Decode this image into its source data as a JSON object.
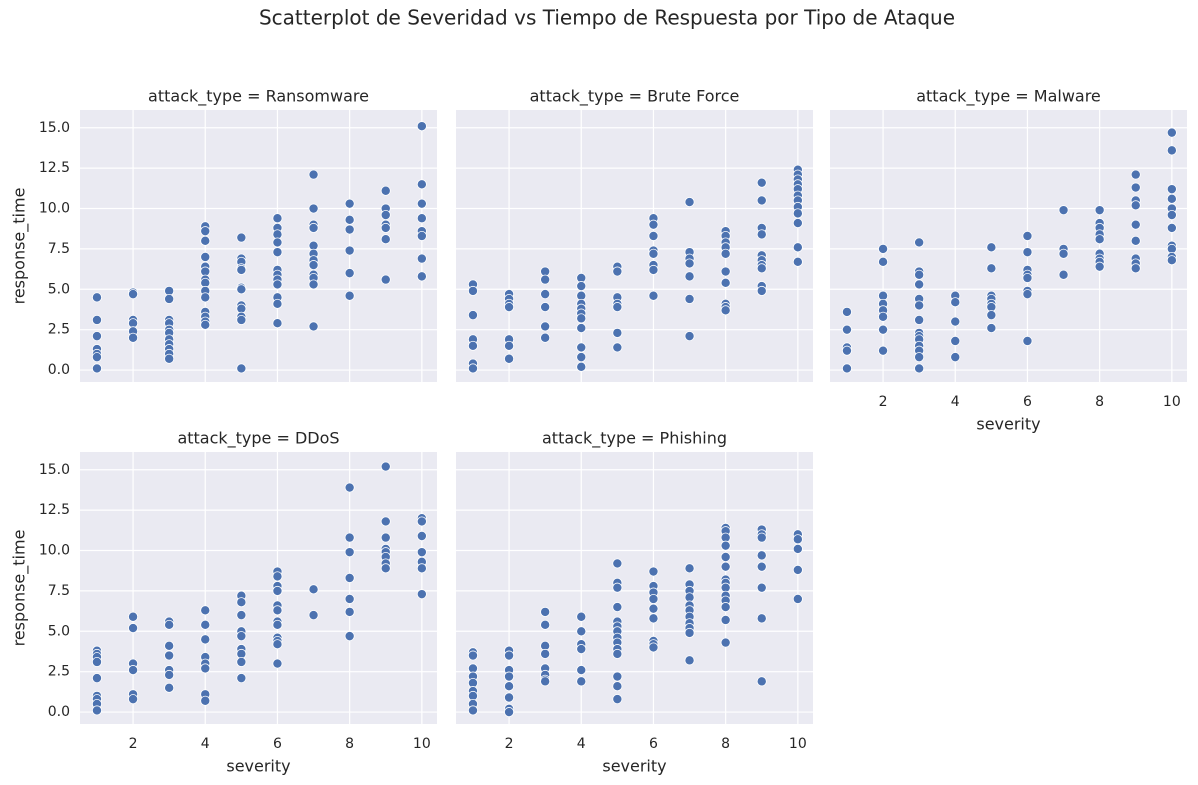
{
  "title": "Scatterplot de Severidad vs Tiempo de Respuesta por Tipo de Ataque",
  "chart_data": [
    {
      "type": "scatter",
      "title": "attack_type = Ransomware",
      "ylabel": "response_time",
      "color": "#4c72b0",
      "grid": true,
      "show_xticklabels": false,
      "show_yticklabels": true,
      "xlim": [
        0.53,
        10.42
      ],
      "ylim": [
        -0.74,
        16.1
      ],
      "xticks": [
        2,
        4,
        6,
        8,
        10
      ],
      "yticks": [
        {
          "value": 0,
          "label": "0.0"
        },
        2.5,
        {
          "value": 5,
          "label": "5.0"
        },
        7.5,
        {
          "value": 10,
          "label": "10.0"
        },
        12.5,
        {
          "value": 15,
          "label": "15.0"
        }
      ],
      "x": [
        1,
        1,
        1,
        1,
        1,
        1,
        1,
        2,
        2,
        2,
        2,
        2,
        2,
        3,
        3,
        3,
        3,
        3,
        3,
        3,
        3,
        3,
        3,
        3,
        4,
        4,
        4,
        4,
        4,
        4,
        4,
        4,
        4,
        4,
        4,
        4,
        4,
        4,
        5,
        5,
        5,
        5,
        5,
        5,
        5,
        5,
        5,
        5,
        5,
        5,
        6,
        6,
        6,
        6,
        6,
        6,
        6,
        6,
        6,
        6,
        6,
        6,
        7,
        7,
        7,
        7,
        7,
        7,
        7,
        7,
        7,
        7,
        7,
        7,
        8,
        8,
        8,
        8,
        8,
        8,
        9,
        9,
        9,
        9,
        9,
        9,
        9,
        10,
        10,
        10,
        10,
        10,
        10,
        10,
        10
      ],
      "y": [
        4.5,
        3.1,
        2.1,
        1.3,
        1.0,
        0.8,
        0.1,
        4.8,
        4.7,
        3.1,
        2.9,
        2.4,
        2.0,
        4.9,
        4.4,
        3.1,
        2.9,
        2.5,
        2.3,
        1.9,
        1.6,
        1.3,
        1.0,
        0.7,
        8.9,
        8.6,
        8.0,
        7.0,
        6.4,
        6.1,
        5.6,
        5.4,
        4.9,
        4.5,
        3.6,
        3.3,
        3.0,
        2.8,
        8.2,
        6.9,
        6.7,
        6.3,
        6.2,
        5.1,
        5.0,
        4.0,
        3.8,
        3.3,
        3.1,
        0.1,
        9.4,
        8.8,
        8.4,
        7.9,
        7.3,
        6.2,
        5.9,
        5.6,
        5.3,
        4.5,
        4.1,
        2.9,
        12.1,
        10.0,
        9.0,
        8.8,
        7.7,
        7.2,
        6.8,
        6.5,
        5.9,
        5.7,
        5.3,
        2.7,
        10.3,
        9.3,
        8.7,
        7.4,
        6.0,
        4.6,
        11.1,
        10.0,
        9.6,
        9.0,
        8.8,
        8.1,
        5.6,
        15.1,
        11.5,
        10.3,
        9.4,
        8.6,
        8.3,
        6.9,
        5.8
      ]
    },
    {
      "type": "scatter",
      "title": "attack_type = Brute Force",
      "color": "#4c72b0",
      "grid": true,
      "show_xticklabels": false,
      "show_yticklabels": false,
      "xlim": [
        0.53,
        10.42
      ],
      "ylim": [
        -0.74,
        16.1
      ],
      "xticks": [
        2,
        4,
        6,
        8,
        10
      ],
      "yticks": [
        {
          "value": 0,
          "label": "0.0"
        },
        2.5,
        {
          "value": 5,
          "label": "5.0"
        },
        7.5,
        {
          "value": 10,
          "label": "10.0"
        },
        12.5,
        {
          "value": 15,
          "label": "15.0"
        }
      ],
      "x": [
        1,
        1,
        1,
        1,
        1,
        1,
        1,
        2,
        2,
        2,
        2,
        2,
        2,
        2,
        3,
        3,
        3,
        3,
        3,
        3,
        4,
        4,
        4,
        4,
        4,
        4,
        4,
        4,
        4,
        4,
        4,
        5,
        5,
        5,
        5,
        5,
        5,
        5,
        6,
        6,
        6,
        6,
        6,
        6,
        6,
        6,
        7,
        7,
        7,
        7,
        7,
        7,
        7,
        8,
        8,
        8,
        8,
        8,
        8,
        8,
        8,
        8,
        8,
        9,
        9,
        9,
        9,
        9,
        9,
        9,
        9,
        9,
        9,
        10,
        10,
        10,
        10,
        10,
        10,
        10,
        10,
        10,
        10,
        10,
        10
      ],
      "y": [
        5.3,
        4.9,
        3.4,
        1.9,
        1.5,
        0.4,
        0.1,
        4.7,
        4.4,
        4.1,
        3.9,
        1.9,
        1.5,
        0.7,
        6.1,
        5.6,
        4.7,
        3.9,
        2.7,
        2.0,
        5.7,
        5.2,
        4.6,
        4.1,
        3.8,
        3.5,
        3.2,
        2.6,
        1.4,
        0.8,
        0.2,
        6.4,
        6.1,
        4.5,
        4.1,
        3.9,
        2.3,
        1.4,
        9.4,
        9.0,
        8.3,
        7.4,
        7.2,
        6.5,
        6.2,
        4.6,
        10.4,
        7.3,
        6.9,
        6.6,
        5.8,
        4.4,
        2.1,
        8.6,
        8.3,
        7.9,
        7.6,
        7.2,
        6.1,
        5.4,
        4.1,
        3.9,
        3.7,
        11.6,
        10.5,
        8.8,
        8.4,
        7.1,
        6.8,
        6.5,
        6.3,
        5.2,
        4.9,
        12.4,
        12.1,
        11.8,
        11.5,
        11.2,
        10.8,
        10.5,
        10.1,
        9.7,
        9.1,
        7.6,
        6.7
      ]
    },
    {
      "type": "scatter",
      "title": "attack_type = Malware",
      "xlabel": "severity",
      "color": "#4c72b0",
      "grid": true,
      "show_xticklabels": true,
      "show_yticklabels": false,
      "xlim": [
        0.53,
        10.42
      ],
      "ylim": [
        -0.74,
        16.1
      ],
      "xticks": [
        2,
        4,
        6,
        8,
        10
      ],
      "yticks": [
        {
          "value": 0,
          "label": "0.0"
        },
        2.5,
        {
          "value": 5,
          "label": "5.0"
        },
        7.5,
        {
          "value": 10,
          "label": "10.0"
        },
        12.5,
        {
          "value": 15,
          "label": "15.0"
        }
      ],
      "x": [
        1,
        1,
        1,
        1,
        1,
        2,
        2,
        2,
        2,
        2,
        2,
        2,
        2,
        3,
        3,
        3,
        3,
        3,
        3,
        3,
        3,
        3,
        3,
        3,
        3,
        3,
        3,
        4,
        4,
        4,
        4,
        4,
        5,
        5,
        5,
        5,
        5,
        5,
        5,
        5,
        6,
        6,
        6,
        6,
        6,
        6,
        6,
        6,
        7,
        7,
        7,
        7,
        8,
        8,
        8,
        8,
        8,
        8,
        8,
        8,
        8,
        9,
        9,
        9,
        9,
        9,
        9,
        9,
        9,
        9,
        10,
        10,
        10,
        10,
        10,
        10,
        10,
        10,
        10,
        10,
        10
      ],
      "y": [
        3.6,
        2.5,
        1.4,
        1.2,
        0.1,
        7.5,
        6.7,
        4.6,
        4.1,
        3.7,
        3.3,
        2.5,
        1.2,
        7.9,
        6.1,
        5.9,
        5.3,
        4.4,
        4.0,
        3.1,
        2.3,
        2.1,
        1.9,
        1.5,
        1.2,
        0.8,
        0.1,
        4.6,
        4.2,
        3.0,
        1.8,
        0.8,
        7.6,
        6.3,
        4.6,
        4.4,
        4.1,
        3.9,
        3.4,
        2.6,
        8.3,
        7.3,
        6.2,
        5.9,
        5.7,
        4.9,
        4.7,
        1.8,
        9.9,
        7.5,
        7.2,
        5.9,
        9.9,
        9.1,
        8.8,
        8.4,
        8.1,
        7.2,
        6.9,
        6.7,
        6.4,
        12.1,
        11.3,
        10.5,
        10.2,
        9.0,
        8.0,
        6.9,
        6.6,
        6.3,
        14.7,
        13.6,
        11.2,
        10.6,
        10.0,
        9.6,
        8.8,
        7.7,
        7.5,
        7.0,
        6.8
      ]
    },
    {
      "type": "scatter",
      "title": "attack_type = DDoS",
      "xlabel": "severity",
      "ylabel": "response_time",
      "color": "#4c72b0",
      "grid": true,
      "show_xticklabels": true,
      "show_yticklabels": true,
      "xlim": [
        0.53,
        10.42
      ],
      "ylim": [
        -0.74,
        16.1
      ],
      "xticks": [
        2,
        4,
        6,
        8,
        10
      ],
      "yticks": [
        {
          "value": 0,
          "label": "0.0"
        },
        2.5,
        {
          "value": 5,
          "label": "5.0"
        },
        7.5,
        {
          "value": 10,
          "label": "10.0"
        },
        12.5,
        {
          "value": 15,
          "label": "15.0"
        }
      ],
      "x": [
        1,
        1,
        1,
        1,
        1,
        1,
        1,
        1,
        1,
        2,
        2,
        2,
        2,
        2,
        2,
        3,
        3,
        3,
        3,
        3,
        3,
        3,
        4,
        4,
        4,
        4,
        4,
        4,
        4,
        4,
        5,
        5,
        5,
        5,
        5,
        5,
        5,
        5,
        5,
        6,
        6,
        6,
        6,
        6,
        6,
        6,
        6,
        6,
        6,
        6,
        6,
        7,
        7,
        8,
        8,
        8,
        8,
        8,
        8,
        8,
        9,
        9,
        9,
        9,
        9,
        9,
        9,
        9,
        10,
        10,
        10,
        10,
        10,
        10,
        10
      ],
      "y": [
        3.8,
        3.6,
        3.4,
        3.1,
        2.1,
        1.0,
        0.8,
        0.5,
        0.1,
        5.9,
        5.2,
        3.0,
        2.6,
        1.1,
        0.8,
        5.6,
        5.4,
        4.1,
        3.5,
        2.6,
        2.3,
        1.5,
        6.3,
        5.4,
        4.5,
        3.4,
        3.0,
        2.7,
        1.1,
        0.7,
        7.2,
        6.8,
        6.0,
        5.0,
        4.7,
        3.9,
        3.6,
        3.1,
        2.1,
        8.7,
        8.4,
        7.8,
        7.5,
        6.6,
        6.3,
        5.6,
        5.4,
        4.6,
        4.4,
        4.2,
        3.0,
        7.6,
        6.0,
        13.9,
        10.8,
        9.9,
        8.3,
        7.0,
        6.2,
        4.7,
        15.2,
        11.8,
        10.8,
        10.1,
        9.9,
        9.6,
        9.2,
        8.9,
        12.0,
        11.8,
        10.9,
        9.9,
        9.3,
        8.9,
        7.3
      ]
    },
    {
      "type": "scatter",
      "title": "attack_type = Phishing",
      "xlabel": "severity",
      "color": "#4c72b0",
      "grid": true,
      "show_xticklabels": true,
      "show_yticklabels": false,
      "xlim": [
        0.53,
        10.42
      ],
      "ylim": [
        -0.74,
        16.1
      ],
      "xticks": [
        2,
        4,
        6,
        8,
        10
      ],
      "yticks": [
        {
          "value": 0,
          "label": "0.0"
        },
        2.5,
        {
          "value": 5,
          "label": "5.0"
        },
        7.5,
        {
          "value": 10,
          "label": "10.0"
        },
        12.5,
        {
          "value": 15,
          "label": "15.0"
        }
      ],
      "x": [
        1,
        1,
        1,
        1,
        1,
        1,
        1,
        1,
        1,
        2,
        2,
        2,
        2,
        2,
        2,
        2,
        2,
        3,
        3,
        3,
        3,
        3,
        3,
        3,
        3,
        4,
        4,
        4,
        4,
        4,
        4,
        5,
        5,
        5,
        5,
        5,
        5,
        5,
        5,
        5,
        5,
        5,
        5,
        5,
        5,
        6,
        6,
        6,
        6,
        6,
        6,
        6,
        6,
        6,
        7,
        7,
        7,
        7,
        7,
        7,
        7,
        7,
        7,
        7,
        7,
        8,
        8,
        8,
        8,
        8,
        8,
        8,
        8,
        8,
        8,
        8,
        8,
        8,
        8,
        9,
        9,
        9,
        9,
        9,
        9,
        9,
        9,
        10,
        10,
        10,
        10,
        10
      ],
      "y": [
        3.7,
        3.5,
        2.7,
        2.2,
        1.8,
        1.3,
        1.0,
        0.5,
        0.1,
        3.8,
        3.5,
        2.6,
        2.2,
        1.6,
        0.9,
        0.2,
        0.0,
        6.2,
        5.4,
        4.1,
        3.6,
        2.7,
        2.3,
        2.0,
        1.9,
        5.9,
        5.0,
        4.2,
        3.9,
        2.6,
        1.9,
        9.2,
        8.0,
        7.7,
        6.5,
        5.6,
        5.3,
        5.0,
        4.6,
        4.3,
        3.9,
        3.6,
        2.2,
        1.6,
        0.8,
        8.7,
        7.8,
        7.4,
        7.0,
        6.4,
        5.8,
        4.4,
        4.2,
        4.0,
        8.9,
        7.9,
        7.5,
        7.1,
        6.6,
        6.3,
        5.9,
        5.5,
        5.2,
        4.9,
        3.2,
        11.4,
        11.2,
        10.8,
        10.3,
        9.6,
        9.0,
        8.2,
        8.0,
        7.7,
        7.2,
        6.9,
        6.5,
        5.7,
        4.3,
        11.3,
        11.0,
        10.8,
        9.7,
        9.0,
        7.7,
        5.8,
        1.9,
        11.0,
        10.7,
        10.1,
        8.8,
        7.0
      ]
    }
  ]
}
